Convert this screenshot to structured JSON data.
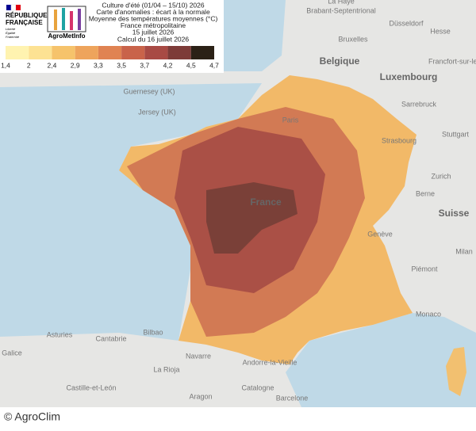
{
  "header": {
    "logo": {
      "republique": [
        "RÉPUBLIQUE",
        "FRANÇAISE"
      ],
      "motto": [
        "Liberté",
        "Égalité",
        "Fraternité"
      ],
      "brand": "AgroMetInfo"
    },
    "title_lines": [
      "Culture d'été (01/04 – 15/10) 2026",
      "Carte d'anomalies : écart à la normale",
      "Moyenne des températures moyennes (°C)",
      "France métropolitaine",
      "15 juillet 2026",
      "Calcul du 16 juillet 2026"
    ]
  },
  "legend": {
    "labels": [
      "1,4",
      "2",
      "2,4",
      "2,9",
      "3,3",
      "3,5",
      "3,7",
      "4,2",
      "4,5",
      "4,7"
    ],
    "colors": [
      "#fff3b0",
      "#fde293",
      "#f6c36b",
      "#eea45c",
      "#e08352",
      "#c9634a",
      "#a84a44",
      "#7d3b38",
      "#2b2116"
    ]
  },
  "map_labels": [
    "La Haye",
    "Brabant-Septentrional",
    "Bruxelles",
    "Düsseldorf",
    "Belgique",
    "Luxembourg",
    "Hesse",
    "Francfort-sur-le-Main",
    "Sarrebruck",
    "Guernesey (UK)",
    "Jersey (UK)",
    "Paris",
    "Strasbourg",
    "Stuttgart",
    "Zurich",
    "Berne",
    "Suisse",
    "France",
    "Genève",
    "Milan",
    "Piémont",
    "Monaco",
    "Bilbao",
    "Asturies",
    "Cantabrie",
    "Galice",
    "Navarre",
    "La Rioja",
    "Aragon",
    "Castille-et-León",
    "Catalogne",
    "Andorre-la-Vieille",
    "Barcelone"
  ],
  "credit": "© AgroClim"
}
